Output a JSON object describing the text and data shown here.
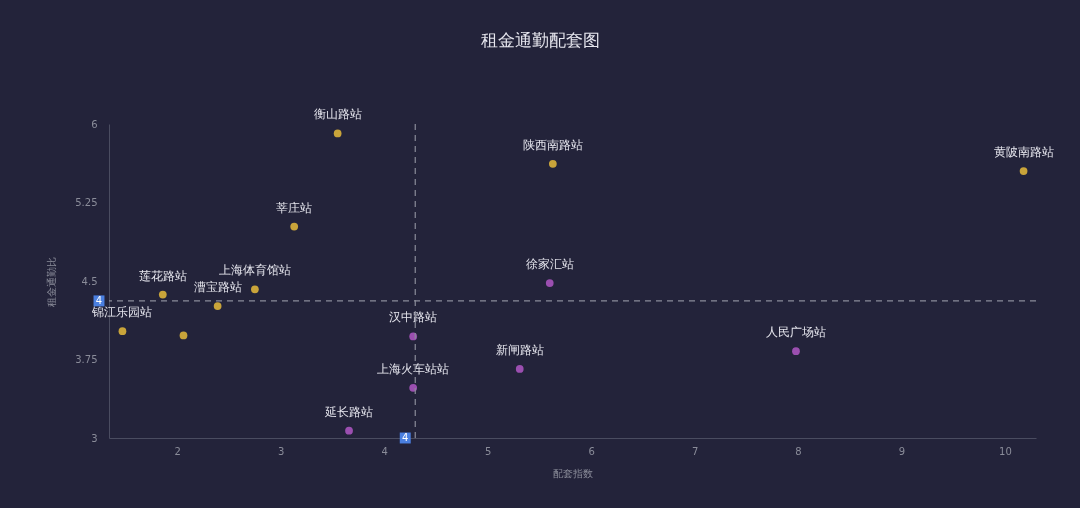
{
  "chart_data": {
    "type": "scatter",
    "title": "租金通勤配套图",
    "xlabel": "配套指数",
    "ylabel": "租金通勤比",
    "xlim": [
      1.34,
      10.3
    ],
    "ylim": [
      3,
      6
    ],
    "xticks": [
      2,
      3,
      4,
      5,
      6,
      7,
      8,
      9,
      10
    ],
    "yticks": [
      3,
      3.75,
      4.5,
      5.25,
      6
    ],
    "grid": false,
    "legend": false,
    "marker": "circle",
    "series": [
      {
        "color": "#c9a43a",
        "x": [
          3.55,
          5.63,
          10.18,
          3.13,
          2.75,
          1.86,
          2.39,
          1.47,
          2.06
        ],
        "values": [
          5.91,
          5.62,
          5.55,
          5.02,
          4.42,
          4.37,
          4.26,
          4.02,
          3.98
        ],
        "value_labels": [
          "衡山路站",
          "陕西南路站",
          "黄陂南路站",
          "莘庄站",
          "上海体育馆站",
          "莲花路站",
          "漕宝路站",
          "锦江乐园站",
          null
        ]
      },
      {
        "color": "#9b4fb0",
        "x": [
          4.28,
          4.28,
          3.66,
          5.6,
          5.31,
          7.98
        ],
        "values": [
          3.97,
          3.48,
          3.07,
          4.48,
          3.66,
          3.83
        ],
        "value_labels": [
          "汉中路站",
          "上海火车站站",
          "延长路站",
          "徐家汇站",
          "新闸路站",
          "人民广场站"
        ]
      }
    ],
    "ref_lines": [
      {
        "axis": "x",
        "value": 4.3,
        "label": "4",
        "color": "#8a8c99",
        "line_style": "dashed"
      },
      {
        "axis": "y",
        "value": 4.31,
        "label": "4",
        "color": "#8a8c99",
        "line_style": "dashed"
      }
    ]
  }
}
